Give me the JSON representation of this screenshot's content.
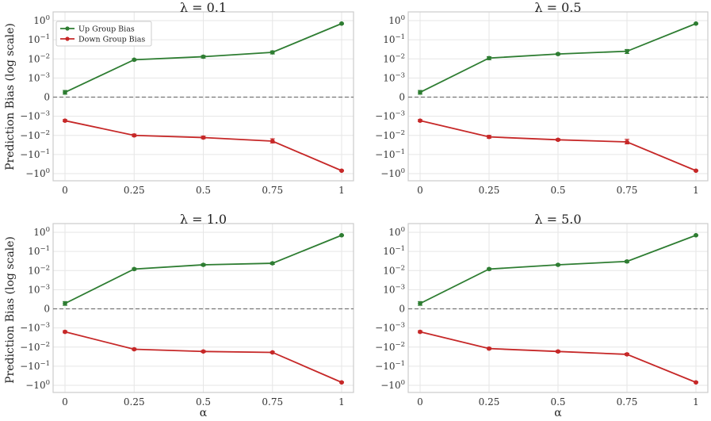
{
  "figure": {
    "ylabel": "Prediction Bias (log scale)",
    "xlabel": "α"
  },
  "legend": {
    "up_label": "Up Group Bias",
    "down_label": "Down Group Bias"
  },
  "colors": {
    "up": "#2e7d32",
    "down": "#c62828",
    "zero_line": "#777777",
    "grid": "#e6e6e6",
    "frame": "#cccccc"
  },
  "x_tick_labels": [
    "0",
    "0.25",
    "0.5",
    "0.75",
    "1"
  ],
  "y_tick_labels": [
    {
      "base": "10",
      "exp": "0"
    },
    {
      "base": "10",
      "exp": "−1"
    },
    {
      "base": "10",
      "exp": "−2"
    },
    {
      "base": "10",
      "exp": "−3"
    },
    {
      "base": "0",
      "exp": ""
    },
    {
      "base": "−10",
      "exp": "−3"
    },
    {
      "base": "−10",
      "exp": "−2"
    },
    {
      "base": "−10",
      "exp": "−1"
    },
    {
      "base": "−10",
      "exp": "0"
    }
  ],
  "chart_data": [
    {
      "type": "line",
      "title": "λ = 0.1",
      "x": [
        0,
        0.25,
        0.5,
        0.75,
        1
      ],
      "yscale": "symlog",
      "ylim": [
        -1,
        1
      ],
      "xlabel": "",
      "ylabel": "Prediction Bias (log scale)",
      "legend": "top-left",
      "series": [
        {
          "name": "Up Group Bias",
          "values": [
            0.00025,
            0.009,
            0.013,
            0.022,
            0.7
          ],
          "errors": [
            0.0001,
            0.001,
            0.002,
            0.004,
            0.05
          ]
        },
        {
          "name": "Down Group Bias",
          "values": [
            -0.0017,
            -0.01,
            -0.013,
            -0.02,
            -0.7
          ],
          "errors": [
            0.0002,
            0.0015,
            0.002,
            0.005,
            0.05
          ]
        }
      ]
    },
    {
      "type": "line",
      "title": "λ = 0.5",
      "x": [
        0,
        0.25,
        0.5,
        0.75,
        1
      ],
      "yscale": "symlog",
      "ylim": [
        -1,
        1
      ],
      "xlabel": "",
      "ylabel": "",
      "series": [
        {
          "name": "Up Group Bias",
          "values": [
            0.00025,
            0.011,
            0.018,
            0.025,
            0.7
          ],
          "errors": [
            0.0001,
            0.002,
            0.002,
            0.006,
            0.05
          ]
        },
        {
          "name": "Down Group Bias",
          "values": [
            -0.0017,
            -0.012,
            -0.017,
            -0.022,
            -0.7
          ],
          "errors": [
            0.0002,
            0.002,
            0.002,
            0.006,
            0.05
          ]
        }
      ]
    },
    {
      "type": "line",
      "title": "λ = 1.0",
      "x": [
        0,
        0.25,
        0.5,
        0.75,
        1
      ],
      "yscale": "symlog",
      "ylim": [
        -1,
        1
      ],
      "xlabel": "α",
      "ylabel": "Prediction Bias (log scale)",
      "series": [
        {
          "name": "Up Group Bias",
          "values": [
            0.00028,
            0.012,
            0.02,
            0.024,
            0.7
          ],
          "errors": [
            0.0001,
            0.0015,
            0.0025,
            0.003,
            0.05
          ]
        },
        {
          "name": "Down Group Bias",
          "values": [
            -0.0016,
            -0.013,
            -0.017,
            -0.019,
            -0.7
          ],
          "errors": [
            0.0002,
            0.0015,
            0.002,
            0.002,
            0.05
          ]
        }
      ]
    },
    {
      "type": "line",
      "title": "λ = 5.0",
      "x": [
        0,
        0.25,
        0.5,
        0.75,
        1
      ],
      "yscale": "symlog",
      "ylim": [
        -1,
        1
      ],
      "xlabel": "α",
      "ylabel": "",
      "series": [
        {
          "name": "Up Group Bias",
          "values": [
            0.00028,
            0.012,
            0.02,
            0.03,
            0.7
          ],
          "errors": [
            0.0001,
            0.0015,
            0.002,
            0.004,
            0.05
          ]
        },
        {
          "name": "Down Group Bias",
          "values": [
            -0.0016,
            -0.012,
            -0.017,
            -0.024,
            -0.7
          ],
          "errors": [
            0.0002,
            0.0015,
            0.002,
            0.003,
            0.05
          ]
        }
      ]
    }
  ]
}
